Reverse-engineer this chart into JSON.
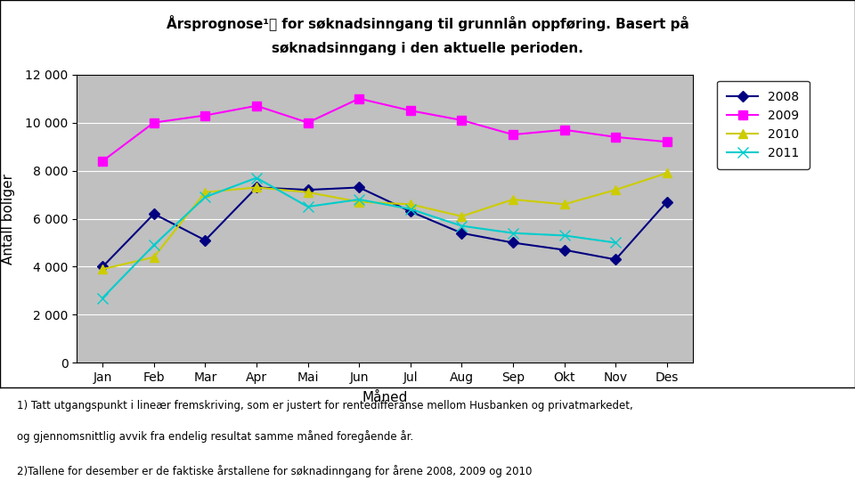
{
  "title_line1": "Årsprognose¹⧧ for søknadsinngang til grunnlån oppføring. Basert på",
  "title_line2": "søknadsinngang i den aktuelle perioden.",
  "xlabel": "Måned",
  "ylabel": "Antall boliger",
  "months": [
    "Jan",
    "Feb",
    "Mar",
    "Apr",
    "Mai",
    "Jun",
    "Jul",
    "Aug",
    "Sep",
    "Okt",
    "Nov",
    "Des"
  ],
  "series": {
    "2008": [
      4000,
      6200,
      5100,
      7300,
      7200,
      7300,
      6300,
      5400,
      5000,
      4700,
      4300,
      6700
    ],
    "2009": [
      8400,
      10000,
      10300,
      10700,
      10000,
      11000,
      10500,
      10100,
      9500,
      9700,
      9400,
      9200
    ],
    "2010": [
      3900,
      4400,
      7100,
      7300,
      7100,
      6700,
      6600,
      6100,
      6800,
      6600,
      7200,
      7900
    ],
    "2011": [
      2700,
      4900,
      6900,
      7700,
      6500,
      6800,
      6400,
      5700,
      5400,
      5300,
      5000,
      null
    ]
  },
  "colors": {
    "2008": "#000080",
    "2009": "#FF00FF",
    "2010": "#CCCC00",
    "2011": "#00CCCC"
  },
  "ylim": [
    0,
    12000
  ],
  "yticks": [
    0,
    2000,
    4000,
    6000,
    8000,
    10000,
    12000
  ],
  "background_color": "#C0C0C0",
  "footnote1": "1) Tatt utgangspunkt i lineær fremskriving, som er justert for rentedifferanse mellom Husbanken og privatmarkedet,",
  "footnote2": "og gjennomsnittlig avvik fra endelig resultat samme måned foregående år.",
  "footnote3": "2)Tallene for desember er de faktiske årstallene for søknadinngang for årene 2008, 2009 og 2010"
}
